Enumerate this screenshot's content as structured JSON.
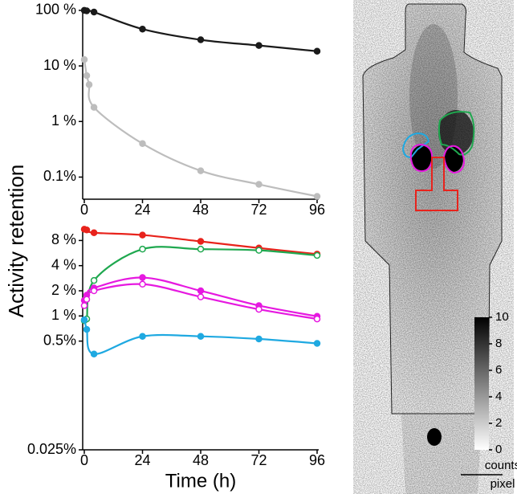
{
  "ylabel": "Activity retention",
  "chart_data": [
    {
      "type": "line",
      "yscale": "log",
      "xlim": [
        0,
        96
      ],
      "xticks": [
        0,
        24,
        48,
        72,
        96
      ],
      "ylim": [
        0.04,
        110
      ],
      "yticks": [
        {
          "value": 100,
          "label": "100 %"
        },
        {
          "value": 10,
          "label": "10 %"
        },
        {
          "value": 1,
          "label": "1 %"
        },
        {
          "value": 0.1,
          "label": "0.1%"
        }
      ],
      "series": [
        {
          "color": "#1a1a1a",
          "marker": "filled",
          "x": [
            0,
            1,
            4,
            24,
            48,
            72,
            96
          ],
          "values": [
            100,
            98,
            93,
            46,
            29.5,
            23.3,
            18.4
          ]
        },
        {
          "color": "#bdbdbd",
          "marker": "filled",
          "x": [
            0,
            1,
            2,
            4,
            24,
            48,
            72,
            96
          ],
          "values": [
            13,
            6.7,
            4.6,
            1.8,
            0.4,
            0.13,
            0.074,
            0.045
          ]
        }
      ]
    },
    {
      "type": "line",
      "yscale": "log",
      "xlim": [
        0,
        96
      ],
      "xticks": [
        0,
        24,
        48,
        72,
        96
      ],
      "xlabel": "Time (h)",
      "ylim": [
        0.025,
        11
      ],
      "yticks": [
        {
          "value": 8,
          "label": "8 %"
        },
        {
          "value": 4,
          "label": "4 %"
        },
        {
          "value": 2,
          "label": "2 %"
        },
        {
          "value": 1,
          "label": "1 %"
        },
        {
          "value": 0.5,
          "label": "0.5%"
        },
        {
          "value": 0.025,
          "label": "0.025%"
        }
      ],
      "series": [
        {
          "color": "#e8231c",
          "marker": "filled",
          "x": [
            0,
            1,
            4,
            24,
            48,
            72,
            96
          ],
          "values": [
            10.9,
            10.7,
            9.9,
            9.3,
            7.8,
            6.5,
            5.5
          ]
        },
        {
          "color": "#1fa84f",
          "marker": "open",
          "x": [
            0,
            1,
            4,
            24,
            48,
            72,
            96
          ],
          "values": [
            0.88,
            0.92,
            2.66,
            6.3,
            6.3,
            6.1,
            5.3
          ]
        },
        {
          "color": "#e619e0",
          "marker": "filled",
          "x": [
            0,
            1,
            4,
            24,
            48,
            72,
            96
          ],
          "values": [
            1.54,
            1.77,
            2.16,
            2.88,
            2.0,
            1.33,
            0.99
          ]
        },
        {
          "color": "#e619e0",
          "marker": "open",
          "x": [
            0,
            1,
            4,
            24,
            48,
            72,
            96
          ],
          "values": [
            1.33,
            1.58,
            2.0,
            2.4,
            1.69,
            1.2,
            0.92
          ]
        },
        {
          "color": "#1fa9e1",
          "marker": "filled",
          "x": [
            0,
            1,
            4,
            24,
            48,
            72,
            96
          ],
          "values": [
            0.9,
            0.69,
            0.35,
            0.57,
            0.57,
            0.53,
            0.47
          ]
        }
      ]
    }
  ],
  "colorbar": {
    "ticks": [
      0,
      2,
      4,
      6,
      8,
      10
    ],
    "label_top": "counts",
    "label_bottom": "pixel"
  }
}
